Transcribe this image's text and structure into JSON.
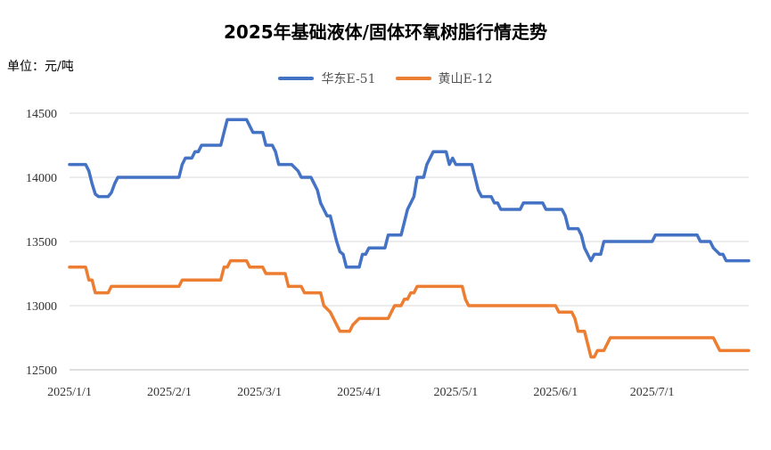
{
  "chart_data": {
    "type": "line",
    "title": "2025年基础液体/固体环氧树脂行情走势",
    "unit_label": "单位：元/吨",
    "ylim": [
      12500,
      14500
    ],
    "yticks": [
      12500,
      13000,
      13500,
      14000,
      14500
    ],
    "x_range": [
      "2025-01-01",
      "2025-07-31"
    ],
    "xticks": [
      {
        "date": "2025-01-01",
        "label": "2025/1/1"
      },
      {
        "date": "2025-02-01",
        "label": "2025/2/1"
      },
      {
        "date": "2025-03-01",
        "label": "2025/3/1"
      },
      {
        "date": "2025-04-01",
        "label": "2025/4/1"
      },
      {
        "date": "2025-05-01",
        "label": "2025/5/1"
      },
      {
        "date": "2025-06-01",
        "label": "2025/6/1"
      },
      {
        "date": "2025-07-01",
        "label": "2025/7/1"
      }
    ],
    "grid": "horizontal",
    "legend_position": "top",
    "series": [
      {
        "name": "华东E-51",
        "color": "#4472C4",
        "points": [
          [
            "2025-01-01",
            14100
          ],
          [
            "2025-01-06",
            14100
          ],
          [
            "2025-01-07",
            14050
          ],
          [
            "2025-01-08",
            13950
          ],
          [
            "2025-01-09",
            13870
          ],
          [
            "2025-01-10",
            13850
          ],
          [
            "2025-01-13",
            13850
          ],
          [
            "2025-01-14",
            13880
          ],
          [
            "2025-01-15",
            13950
          ],
          [
            "2025-01-16",
            14000
          ],
          [
            "2025-01-31",
            14000
          ],
          [
            "2025-02-01",
            14000
          ],
          [
            "2025-02-04",
            14000
          ],
          [
            "2025-02-05",
            14100
          ],
          [
            "2025-02-06",
            14150
          ],
          [
            "2025-02-08",
            14150
          ],
          [
            "2025-02-09",
            14200
          ],
          [
            "2025-02-10",
            14200
          ],
          [
            "2025-02-11",
            14250
          ],
          [
            "2025-02-17",
            14250
          ],
          [
            "2025-02-18",
            14350
          ],
          [
            "2025-02-19",
            14450
          ],
          [
            "2025-02-25",
            14450
          ],
          [
            "2025-02-26",
            14400
          ],
          [
            "2025-02-27",
            14350
          ],
          [
            "2025-03-01",
            14350
          ],
          [
            "2025-03-02",
            14350
          ],
          [
            "2025-03-03",
            14250
          ],
          [
            "2025-03-05",
            14250
          ],
          [
            "2025-03-06",
            14200
          ],
          [
            "2025-03-07",
            14100
          ],
          [
            "2025-03-11",
            14100
          ],
          [
            "2025-03-13",
            14050
          ],
          [
            "2025-03-14",
            14000
          ],
          [
            "2025-03-17",
            14000
          ],
          [
            "2025-03-18",
            13950
          ],
          [
            "2025-03-19",
            13900
          ],
          [
            "2025-03-20",
            13800
          ],
          [
            "2025-03-21",
            13750
          ],
          [
            "2025-03-22",
            13700
          ],
          [
            "2025-03-23",
            13700
          ],
          [
            "2025-03-24",
            13600
          ],
          [
            "2025-03-25",
            13500
          ],
          [
            "2025-03-26",
            13420
          ],
          [
            "2025-03-27",
            13400
          ],
          [
            "2025-03-28",
            13300
          ],
          [
            "2025-03-31",
            13300
          ],
          [
            "2025-04-01",
            13300
          ],
          [
            "2025-04-02",
            13400
          ],
          [
            "2025-04-03",
            13400
          ],
          [
            "2025-04-04",
            13450
          ],
          [
            "2025-04-09",
            13450
          ],
          [
            "2025-04-10",
            13550
          ],
          [
            "2025-04-14",
            13550
          ],
          [
            "2025-04-15",
            13650
          ],
          [
            "2025-04-16",
            13750
          ],
          [
            "2025-04-18",
            13850
          ],
          [
            "2025-04-19",
            14000
          ],
          [
            "2025-04-21",
            14000
          ],
          [
            "2025-04-22",
            14100
          ],
          [
            "2025-04-24",
            14200
          ],
          [
            "2025-04-28",
            14200
          ],
          [
            "2025-04-29",
            14100
          ],
          [
            "2025-04-30",
            14150
          ],
          [
            "2025-05-01",
            14100
          ],
          [
            "2025-05-06",
            14100
          ],
          [
            "2025-05-07",
            14000
          ],
          [
            "2025-05-08",
            13900
          ],
          [
            "2025-05-09",
            13850
          ],
          [
            "2025-05-12",
            13850
          ],
          [
            "2025-05-13",
            13800
          ],
          [
            "2025-05-14",
            13800
          ],
          [
            "2025-05-15",
            13750
          ],
          [
            "2025-05-21",
            13750
          ],
          [
            "2025-05-22",
            13800
          ],
          [
            "2025-05-28",
            13800
          ],
          [
            "2025-05-29",
            13750
          ],
          [
            "2025-06-01",
            13750
          ],
          [
            "2025-06-03",
            13750
          ],
          [
            "2025-06-04",
            13700
          ],
          [
            "2025-06-05",
            13600
          ],
          [
            "2025-06-08",
            13600
          ],
          [
            "2025-06-09",
            13550
          ],
          [
            "2025-06-10",
            13450
          ],
          [
            "2025-06-11",
            13400
          ],
          [
            "2025-06-12",
            13350
          ],
          [
            "2025-06-13",
            13400
          ],
          [
            "2025-06-15",
            13400
          ],
          [
            "2025-06-16",
            13500
          ],
          [
            "2025-06-30",
            13500
          ],
          [
            "2025-07-01",
            13500
          ],
          [
            "2025-07-02",
            13550
          ],
          [
            "2025-07-15",
            13550
          ],
          [
            "2025-07-16",
            13500
          ],
          [
            "2025-07-19",
            13500
          ],
          [
            "2025-07-20",
            13450
          ],
          [
            "2025-07-22",
            13400
          ],
          [
            "2025-07-23",
            13400
          ],
          [
            "2025-07-24",
            13350
          ],
          [
            "2025-07-31",
            13350
          ]
        ]
      },
      {
        "name": "黄山E-12",
        "color": "#ED7D31",
        "points": [
          [
            "2025-01-01",
            13300
          ],
          [
            "2025-01-06",
            13300
          ],
          [
            "2025-01-07",
            13200
          ],
          [
            "2025-01-08",
            13200
          ],
          [
            "2025-01-09",
            13100
          ],
          [
            "2025-01-13",
            13100
          ],
          [
            "2025-01-14",
            13150
          ],
          [
            "2025-02-01",
            13150
          ],
          [
            "2025-02-04",
            13150
          ],
          [
            "2025-02-05",
            13200
          ],
          [
            "2025-02-17",
            13200
          ],
          [
            "2025-02-18",
            13300
          ],
          [
            "2025-02-19",
            13300
          ],
          [
            "2025-02-20",
            13350
          ],
          [
            "2025-02-25",
            13350
          ],
          [
            "2025-02-26",
            13300
          ],
          [
            "2025-03-01",
            13300
          ],
          [
            "2025-03-02",
            13300
          ],
          [
            "2025-03-03",
            13250
          ],
          [
            "2025-03-09",
            13250
          ],
          [
            "2025-03-10",
            13150
          ],
          [
            "2025-03-14",
            13150
          ],
          [
            "2025-03-15",
            13100
          ],
          [
            "2025-03-20",
            13100
          ],
          [
            "2025-03-21",
            13000
          ],
          [
            "2025-03-23",
            12950
          ],
          [
            "2025-03-26",
            12800
          ],
          [
            "2025-03-29",
            12800
          ],
          [
            "2025-03-30",
            12850
          ],
          [
            "2025-04-01",
            12900
          ],
          [
            "2025-04-10",
            12900
          ],
          [
            "2025-04-11",
            12950
          ],
          [
            "2025-04-12",
            13000
          ],
          [
            "2025-04-14",
            13000
          ],
          [
            "2025-04-15",
            13050
          ],
          [
            "2025-04-16",
            13050
          ],
          [
            "2025-04-17",
            13100
          ],
          [
            "2025-04-18",
            13100
          ],
          [
            "2025-04-19",
            13150
          ],
          [
            "2025-05-01",
            13150
          ],
          [
            "2025-05-03",
            13150
          ],
          [
            "2025-05-04",
            13050
          ],
          [
            "2025-05-05",
            13000
          ],
          [
            "2025-05-31",
            13000
          ],
          [
            "2025-06-01",
            13000
          ],
          [
            "2025-06-02",
            12950
          ],
          [
            "2025-06-06",
            12950
          ],
          [
            "2025-06-07",
            12900
          ],
          [
            "2025-06-08",
            12800
          ],
          [
            "2025-06-10",
            12800
          ],
          [
            "2025-06-11",
            12700
          ],
          [
            "2025-06-12",
            12600
          ],
          [
            "2025-06-13",
            12600
          ],
          [
            "2025-06-14",
            12650
          ],
          [
            "2025-06-16",
            12650
          ],
          [
            "2025-06-17",
            12700
          ],
          [
            "2025-06-18",
            12750
          ],
          [
            "2025-07-01",
            12750
          ],
          [
            "2025-07-20",
            12750
          ],
          [
            "2025-07-21",
            12700
          ],
          [
            "2025-07-22",
            12650
          ],
          [
            "2025-07-31",
            12650
          ]
        ]
      }
    ]
  }
}
